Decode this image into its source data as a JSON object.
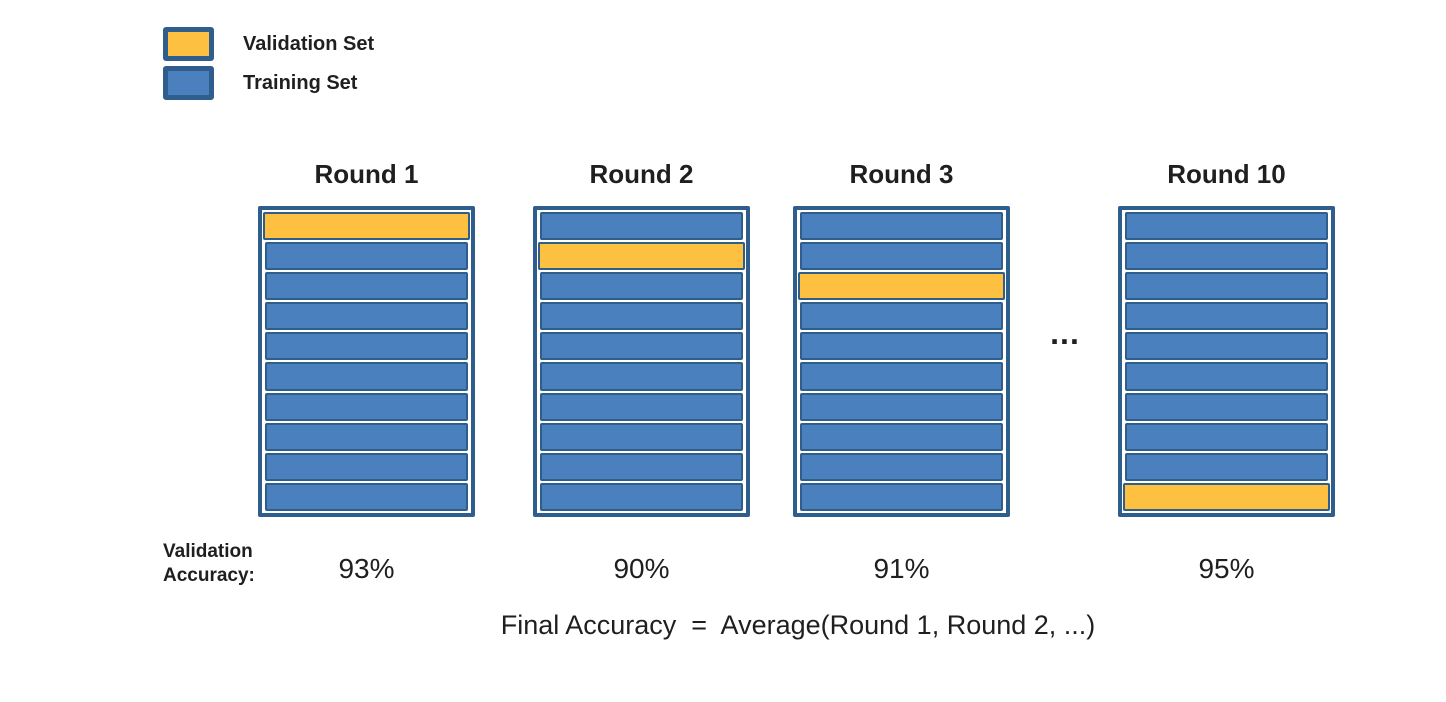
{
  "diagram": {
    "type": "k-fold-cross-validation",
    "folds_per_round": 10,
    "legend": {
      "items": [
        {
          "label": "Validation Set",
          "color": "#fec041"
        },
        {
          "label": "Training Set",
          "color": "#4a80bd"
        }
      ]
    },
    "rounds": [
      {
        "title": "Round 1",
        "validation_fold": 1,
        "accuracy": "93%"
      },
      {
        "title": "Round 2",
        "validation_fold": 2,
        "accuracy": "90%"
      },
      {
        "title": "Round 3",
        "validation_fold": 3,
        "accuracy": "91%"
      },
      {
        "title": "Round 10",
        "validation_fold": 10,
        "accuracy": "95%"
      }
    ],
    "ellipsis": "...",
    "validation_accuracy_label": "Validation Accuracy:",
    "final_accuracy_formula": "Final Accuracy  =  Average(Round 1, Round 2, ...)",
    "colors": {
      "validation": "#fec041",
      "training": "#4a80bd",
      "border": "#2f5d8c",
      "text": "#1f1f1f"
    }
  }
}
